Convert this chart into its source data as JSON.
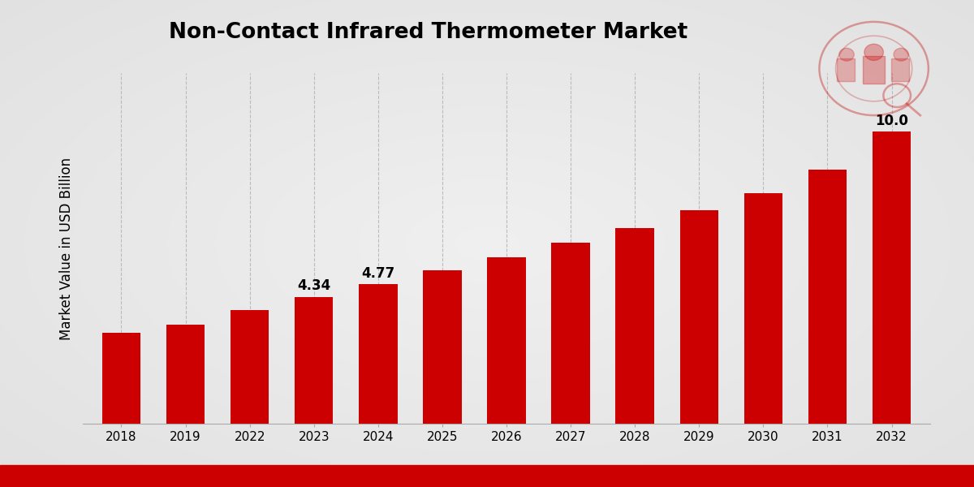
{
  "title": "Non-Contact Infrared Thermometer Market",
  "ylabel": "Market Value in USD Billion",
  "categories": [
    "2018",
    "2019",
    "2022",
    "2023",
    "2024",
    "2025",
    "2026",
    "2027",
    "2028",
    "2029",
    "2030",
    "2031",
    "2032"
  ],
  "values": [
    3.1,
    3.4,
    3.9,
    4.34,
    4.77,
    5.25,
    5.7,
    6.2,
    6.7,
    7.3,
    7.9,
    8.7,
    10.0
  ],
  "bar_color": "#CC0000",
  "title_fontsize": 19,
  "label_fontsize": 12,
  "tick_fontsize": 11,
  "ann_map": {
    "3": "4.34",
    "4": "4.77",
    "12": "10.0"
  },
  "ylim": [
    0,
    12.0
  ],
  "bg_top": "#F0F0F0",
  "bg_bottom": "#E0E0E0"
}
